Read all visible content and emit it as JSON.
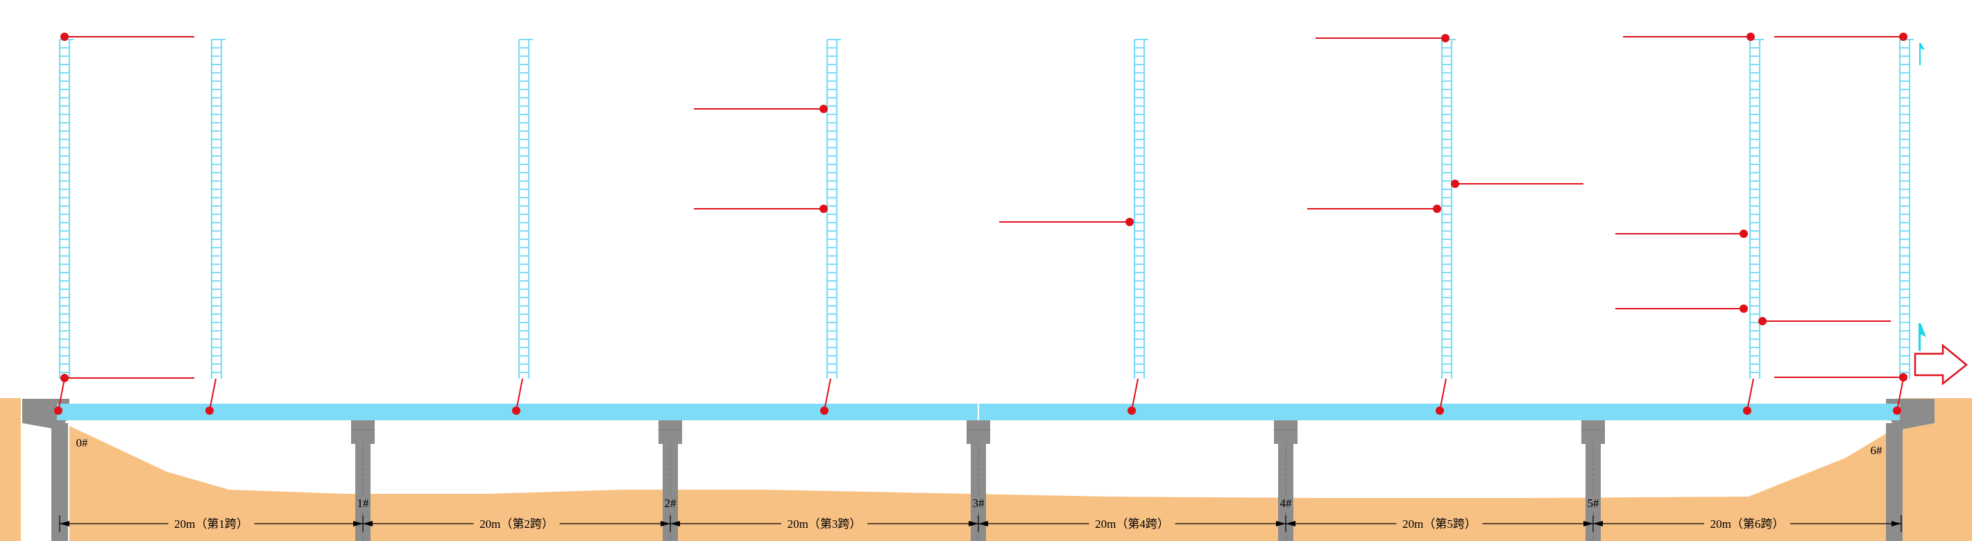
{
  "colors": {
    "deck": "#7fdcf7",
    "tower": "#7fdcf7",
    "red": "#e0101a",
    "ground": "#f8c184",
    "pier": "#8c8c8c",
    "pier_dark": "#6e6e6e",
    "cyan_mark": "#19d6e8",
    "dim_line": "#000000",
    "white": "#ffffff"
  },
  "piers": [
    {
      "label": "0#"
    },
    {
      "label": "1#"
    },
    {
      "label": "2#"
    },
    {
      "label": "3#"
    },
    {
      "label": "4#"
    },
    {
      "label": "5#"
    },
    {
      "label": "6#"
    }
  ],
  "spans": [
    {
      "label": "20m（第1跨）"
    },
    {
      "label": "20m（第2跨）"
    },
    {
      "label": "20m（第3跨）"
    },
    {
      "label": "20m（第4跨）"
    },
    {
      "label": "20m（第5跨）"
    },
    {
      "label": "20m（第6跨）"
    }
  ],
  "icons": {
    "direction_arrow": "right-arrow-icon",
    "cyan_markers": "cyan-flag-icon"
  }
}
